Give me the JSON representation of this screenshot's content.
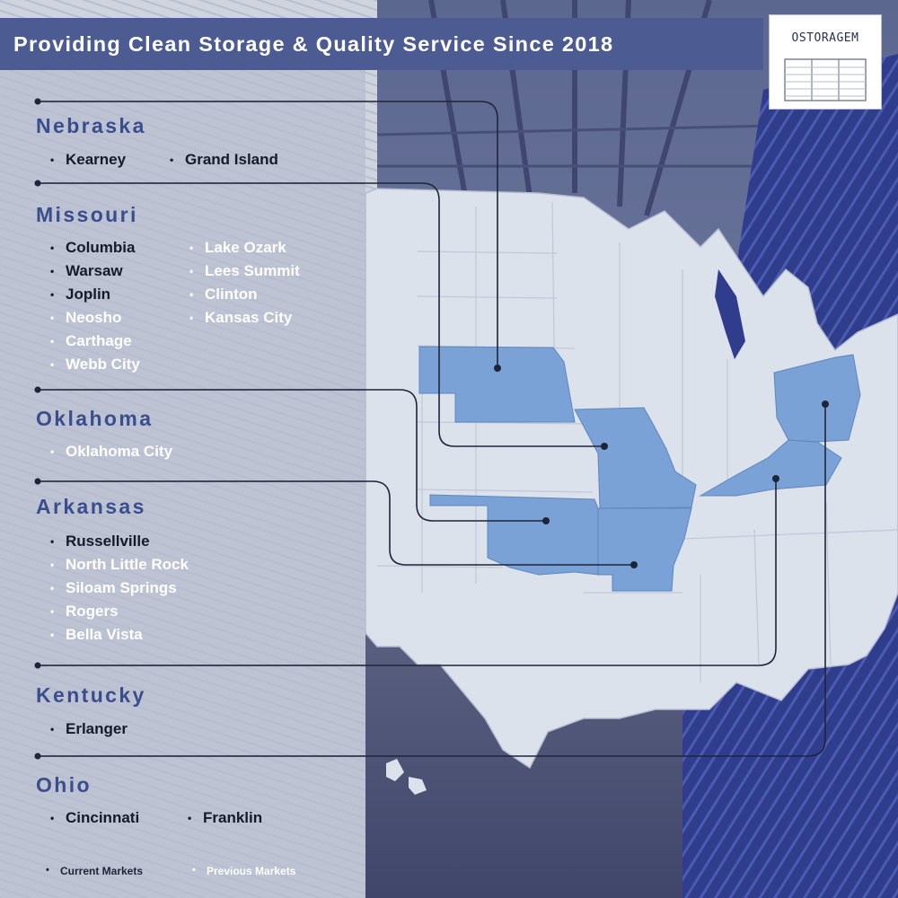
{
  "banner": {
    "title": "Providing Clean Storage & Quality Service Since 2018"
  },
  "logo": {
    "text": "OSTORAGEM"
  },
  "states": [
    {
      "name": "Nebraska",
      "cities": [
        {
          "name": "Kearney",
          "status": "current"
        },
        {
          "name": "Grand Island",
          "status": "current"
        }
      ]
    },
    {
      "name": "Missouri",
      "cities": [
        {
          "name": "Columbia",
          "status": "current"
        },
        {
          "name": "Warsaw",
          "status": "current"
        },
        {
          "name": "Joplin",
          "status": "current"
        },
        {
          "name": "Neosho",
          "status": "previous"
        },
        {
          "name": "Carthage",
          "status": "previous"
        },
        {
          "name": "Webb City",
          "status": "previous"
        },
        {
          "name": "Lake Ozark",
          "status": "previous"
        },
        {
          "name": "Lees Summit",
          "status": "previous"
        },
        {
          "name": "Clinton",
          "status": "previous"
        },
        {
          "name": "Kansas City",
          "status": "previous"
        }
      ]
    },
    {
      "name": "Oklahoma",
      "cities": [
        {
          "name": "Oklahoma City",
          "status": "previous"
        }
      ]
    },
    {
      "name": "Arkansas",
      "cities": [
        {
          "name": "Russellville",
          "status": "current"
        },
        {
          "name": "North Little Rock",
          "status": "previous"
        },
        {
          "name": "Siloam Springs",
          "status": "previous"
        },
        {
          "name": "Rogers",
          "status": "previous"
        },
        {
          "name": "Bella Vista",
          "status": "previous"
        }
      ]
    },
    {
      "name": "Kentucky",
      "cities": [
        {
          "name": "Erlanger",
          "status": "current"
        }
      ]
    },
    {
      "name": "Ohio",
      "cities": [
        {
          "name": "Cincinnati",
          "status": "current"
        },
        {
          "name": "Franklin",
          "status": "current"
        }
      ]
    }
  ],
  "legend": {
    "current_label": "Current Markets",
    "previous_label": "Previous Markets"
  },
  "colors": {
    "banner": "#4c5b92",
    "state_heading": "#3a4e8e",
    "highlight_state": "#7ba2d6",
    "map_land": "#dbe2ec",
    "connector": "#1f2538",
    "current_market": "#141a2a",
    "previous_market": "#ffffff"
  },
  "highlighted_states": [
    "Nebraska",
    "Missouri",
    "Oklahoma",
    "Arkansas",
    "Kentucky",
    "Ohio"
  ]
}
